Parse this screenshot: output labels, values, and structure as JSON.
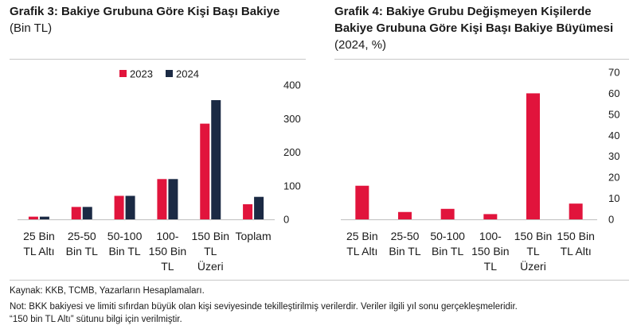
{
  "left_title": {
    "bold": "Grafik 3: Bakiye Grubuna Göre Kişi Başı Bakiye",
    "unit": " (Bin TL)"
  },
  "right_title": {
    "bold": "Grafik 4: Bakiye Grubu Değişmeyen Kişilerde Bakiye Grubuna Göre Kişi Başı Bakiye Büyümesi",
    "unit": " (2024, %)"
  },
  "colors": {
    "y2023": "#e1143c",
    "y2024": "#1b2a44",
    "grid": "#d9d9d9",
    "axis": "#bfbfbf"
  },
  "chart_data": [
    {
      "type": "bar",
      "title": "Grafik 3: Bakiye Grubuna Göre Kişi Başı Bakiye (Bin TL)",
      "categories": [
        [
          "25 Bin",
          "TL Altı"
        ],
        [
          "25-50",
          "Bin TL"
        ],
        [
          "50-100",
          "Bin TL"
        ],
        [
          "100-",
          "150 Bin",
          "TL"
        ],
        [
          "150 Bin",
          "TL",
          "Üzeri"
        ],
        [
          "Toplam"
        ]
      ],
      "series": [
        {
          "name": "2023",
          "values": [
            8,
            37,
            70,
            120,
            285,
            45
          ]
        },
        {
          "name": "2024",
          "values": [
            8,
            37,
            70,
            120,
            355,
            67
          ]
        }
      ],
      "ylim": [
        0,
        400
      ],
      "yticks": [
        0,
        100,
        200,
        300,
        400
      ],
      "legend": "top-center",
      "grid": false
    },
    {
      "type": "bar",
      "title": "Grafik 4: Bakiye Grubu Değişmeyen Kişilerde Bakiye Grubuna Göre Kişi Başı Bakiye Büyümesi (2024, %)",
      "categories": [
        [
          "25 Bin",
          "TL Altı"
        ],
        [
          "25-50",
          "Bin TL"
        ],
        [
          "50-100",
          "Bin TL"
        ],
        [
          "100-",
          "150 Bin",
          "TL"
        ],
        [
          "150 Bin",
          "TL",
          "Üzeri"
        ],
        [
          "150 Bin",
          "TL Altı"
        ]
      ],
      "series": [
        {
          "values": [
            16,
            3.5,
            5,
            2.5,
            60,
            7.5
          ]
        }
      ],
      "ylim": [
        0,
        70
      ],
      "yticks": [
        0,
        10,
        20,
        30,
        40,
        50,
        60,
        70
      ],
      "grid": false
    }
  ],
  "notes": {
    "source": "Kaynak: KKB, TCMB, Yazarların Hesaplamaları.",
    "note1": "Not: BKK bakiyesi ve limiti sıfırdan büyük olan kişi seviyesinde tekilleştirilmiş verilerdir. Veriler ilgili yıl sonu gerçekleşmeleridir.",
    "note2": "“150 bin TL Altı” sütunu bilgi için verilmiştir."
  }
}
